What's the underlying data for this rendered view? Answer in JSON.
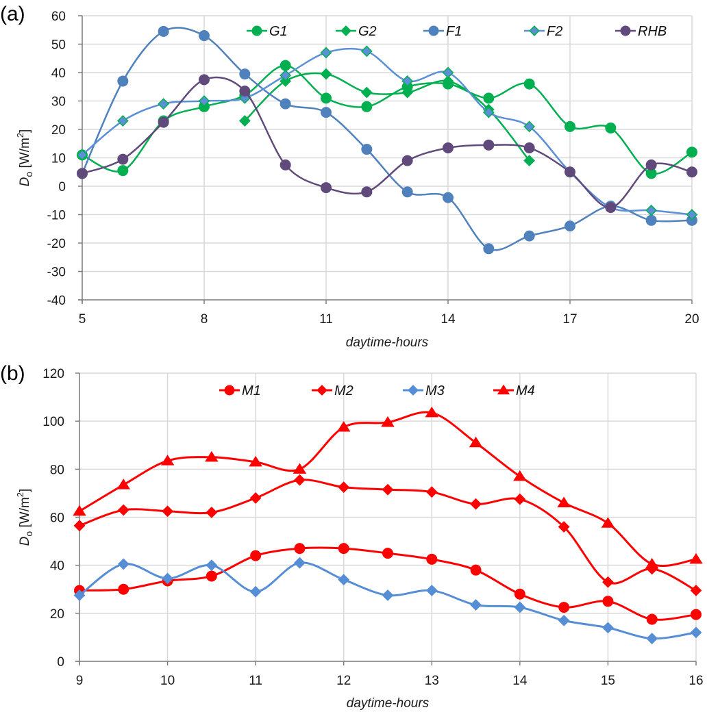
{
  "chart_data": [
    {
      "type": "line",
      "panel_label": "(a)",
      "title": "",
      "xlabel": "daytime-hours",
      "ylabel": "Do [W/m2]",
      "ylabel_parts": {
        "main": "D",
        "sub": "o",
        "unit": " [W/m",
        "sup": "2",
        "close": "]"
      },
      "xlim": [
        5,
        20
      ],
      "ylim": [
        -40,
        60
      ],
      "xticks": [
        5,
        8,
        11,
        14,
        17,
        20
      ],
      "yticks": [
        -40,
        -30,
        -20,
        -10,
        0,
        10,
        20,
        30,
        40,
        50,
        60
      ],
      "xgrid_step": 3,
      "grid": true,
      "legend_position": "top",
      "series": [
        {
          "name": "G1",
          "color": "#00b050",
          "marker": "circle",
          "marker_fill": "#00b050",
          "marker_stroke": "#00b050",
          "x": [
            5,
            6,
            7,
            8,
            9,
            10,
            11,
            12,
            13,
            14,
            15,
            16,
            17,
            18,
            19,
            20
          ],
          "y": [
            11,
            5.5,
            23,
            28,
            32,
            42.5,
            31,
            28,
            35,
            36,
            31,
            36,
            21,
            20.5,
            4.5,
            12
          ]
        },
        {
          "name": "G2",
          "color": "#00b050",
          "marker": "diamond",
          "marker_fill": "#00b050",
          "marker_stroke": "#00b050",
          "x": [
            9,
            10,
            11,
            12,
            13,
            14,
            15,
            16
          ],
          "y": [
            23,
            37,
            39.5,
            33,
            33,
            37,
            27,
            9
          ]
        },
        {
          "name": "F1",
          "color": "#4f81bd",
          "marker": "circle",
          "marker_fill": "#4f81bd",
          "marker_stroke": "#4f81bd",
          "x": [
            5,
            6,
            7,
            8,
            9,
            10,
            11,
            12,
            13,
            14,
            15,
            16,
            17,
            18,
            19,
            20
          ],
          "y": [
            4.5,
            37,
            54.5,
            53,
            39.5,
            29,
            26,
            13,
            -2,
            -4,
            -22,
            -17.5,
            -14,
            -7,
            -12,
            -12
          ]
        },
        {
          "name": "F2",
          "color": "#5b8fd6",
          "marker": "diamond",
          "marker_fill": "#5b8fd6",
          "marker_stroke": "#00b050",
          "x": [
            5,
            6,
            7,
            8,
            9,
            10,
            11,
            12,
            13,
            14,
            15,
            16,
            17,
            18,
            19,
            20
          ],
          "y": [
            11,
            23,
            29,
            30,
            31,
            39,
            47,
            47.5,
            37,
            40,
            26,
            21,
            5,
            -7.5,
            -8.5,
            -10
          ]
        },
        {
          "name": "RHB",
          "color": "#604a7b",
          "marker": "circle",
          "marker_fill": "#604a7b",
          "marker_stroke": "#604a7b",
          "x": [
            5,
            6,
            7,
            8,
            9,
            10,
            11,
            12,
            13,
            14,
            15,
            16,
            17,
            18,
            19,
            20
          ],
          "y": [
            4.5,
            9.5,
            22.5,
            37.5,
            33.5,
            7.5,
            -0.5,
            -2,
            9,
            13.5,
            14.5,
            13.5,
            5,
            -7.5,
            7.5,
            5
          ]
        }
      ]
    },
    {
      "type": "line",
      "panel_label": "(b)",
      "title": "",
      "xlabel": "daytime-hours",
      "ylabel": "Do [W/m2]",
      "ylabel_parts": {
        "main": "D",
        "sub": "o",
        "unit": " [W/m",
        "sup": "2",
        "close": "]"
      },
      "xlim": [
        9,
        16
      ],
      "ylim": [
        0,
        120
      ],
      "xticks": [
        9,
        10,
        11,
        12,
        13,
        14,
        15,
        16
      ],
      "yticks": [
        0,
        20,
        40,
        60,
        80,
        100,
        120
      ],
      "xgrid_step": 1,
      "grid": true,
      "legend_position": "top",
      "series": [
        {
          "name": "M1",
          "color": "#ff0000",
          "marker": "circle",
          "marker_fill": "#ff0000",
          "marker_stroke": "#ff0000",
          "x": [
            9,
            9.5,
            10,
            10.5,
            11,
            11.5,
            12,
            12.5,
            13,
            13.5,
            14,
            14.5,
            15,
            15.5,
            16
          ],
          "y": [
            29.5,
            30,
            33.5,
            35.5,
            44,
            47,
            47,
            45,
            42.5,
            38,
            28,
            22.5,
            25,
            17.5,
            19.5
          ]
        },
        {
          "name": "M2",
          "color": "#ff0000",
          "marker": "diamond",
          "marker_fill": "#ff0000",
          "marker_stroke": "#ff0000",
          "x": [
            9,
            9.5,
            10,
            10.5,
            11,
            11.5,
            12,
            12.5,
            13,
            13.5,
            14,
            14.5,
            15,
            15.5,
            16
          ],
          "y": [
            56.5,
            63,
            62.5,
            62,
            68,
            75.5,
            72.5,
            71.5,
            70.5,
            65.5,
            67.5,
            56,
            33,
            38.5,
            29.5
          ]
        },
        {
          "name": "M3",
          "color": "#558ed5",
          "marker": "diamond",
          "marker_fill": "#558ed5",
          "marker_stroke": "#558ed5",
          "x": [
            9,
            9.5,
            10,
            10.5,
            11,
            11.5,
            12,
            12.5,
            13,
            13.5,
            14,
            14.5,
            15,
            15.5,
            16
          ],
          "y": [
            27.5,
            40.5,
            34.5,
            40,
            29,
            41,
            34,
            27.5,
            29.5,
            23.5,
            22.5,
            17,
            14,
            9.5,
            12
          ]
        },
        {
          "name": "M4",
          "color": "#ff0000",
          "marker": "triangle",
          "marker_fill": "#ff0000",
          "marker_stroke": "#ff0000",
          "x": [
            9,
            9.5,
            10,
            10.5,
            11,
            11.5,
            12,
            12.5,
            13,
            13.5,
            14,
            14.5,
            15,
            15.5,
            16
          ],
          "y": [
            62.5,
            73.5,
            83.5,
            85,
            83,
            80,
            97.5,
            99.5,
            103.5,
            91,
            77,
            66,
            57.5,
            40.5,
            42.5
          ]
        }
      ]
    }
  ]
}
